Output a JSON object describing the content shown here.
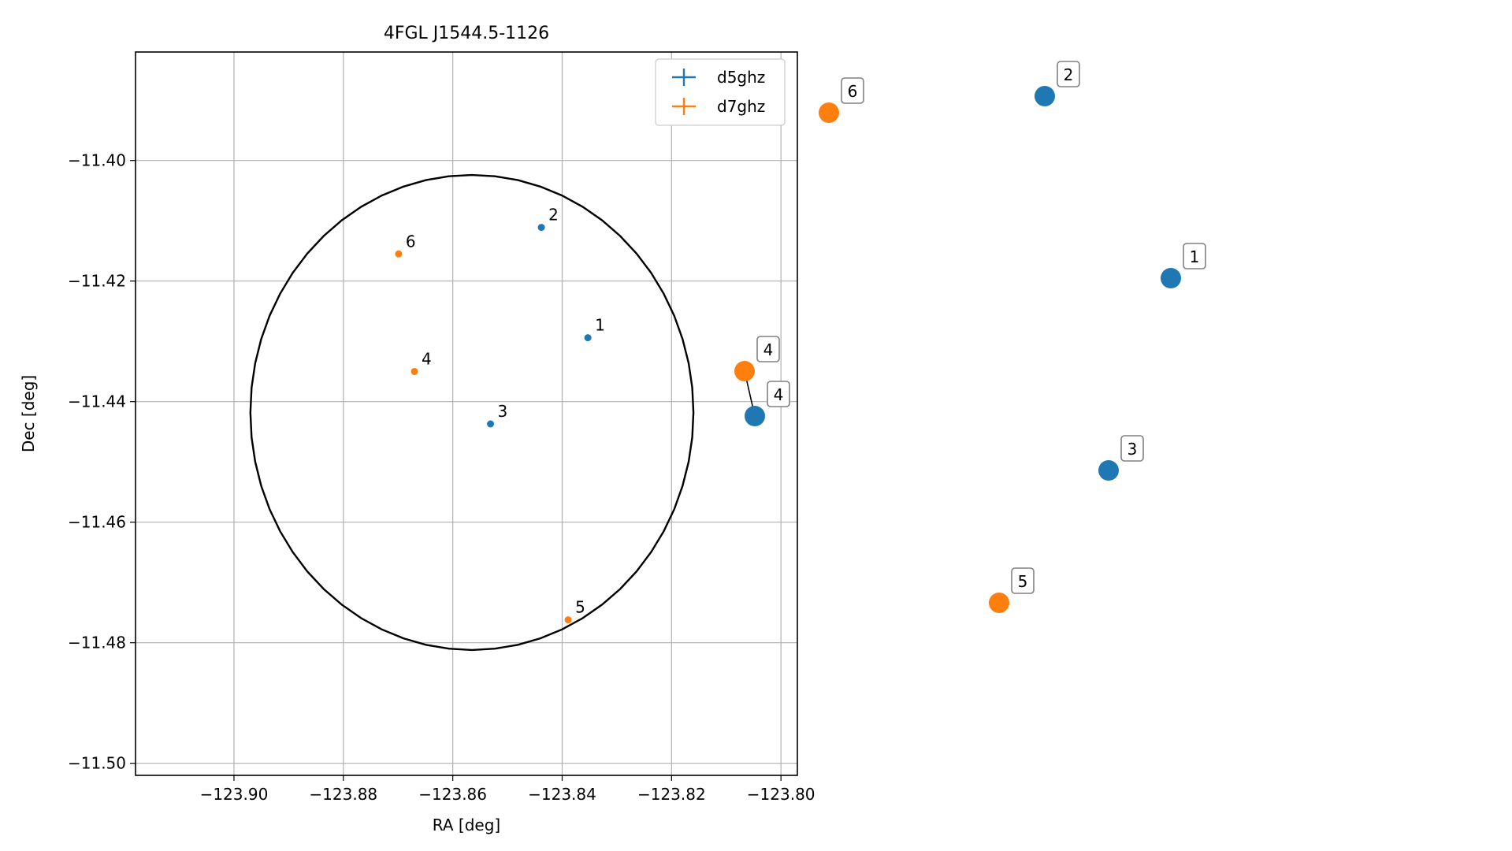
{
  "chart_data": [
    {
      "type": "scatter",
      "title": "4FGL J1544.5-1126",
      "xlabel": "RA [deg]",
      "ylabel": "Dec [deg]",
      "xlim": [
        -123.918,
        -123.797
      ],
      "ylim": [
        -11.502,
        -11.382
      ],
      "xticks": [
        -123.9,
        -123.88,
        -123.86,
        -123.84,
        -123.82,
        -123.8
      ],
      "xtick_labels": [
        "−123.90",
        "−123.88",
        "−123.86",
        "−123.84",
        "−123.82",
        "−123.80"
      ],
      "yticks": [
        -11.4,
        -11.42,
        -11.44,
        -11.46,
        -11.48,
        -11.5
      ],
      "ytick_labels": [
        "−11.40",
        "−11.42",
        "−11.44",
        "−11.46",
        "−11.48",
        "−11.50"
      ],
      "grid": true,
      "legend_position": "top-right",
      "ellipse": {
        "center": [
          -123.8565,
          -11.4418
        ],
        "ra_radius": 0.0405,
        "dec_radius": 0.0394,
        "color": "#000000"
      },
      "series": [
        {
          "name": "d5ghz",
          "color": "#1f77b4",
          "points": [
            {
              "label": "1",
              "x": -123.8353,
              "y": -11.4294
            },
            {
              "label": "2",
              "x": -123.8438,
              "y": -11.4111
            },
            {
              "label": "3",
              "x": -123.8531,
              "y": -11.4437
            }
          ]
        },
        {
          "name": "d7ghz",
          "color": "#ff7f0e",
          "points": [
            {
              "label": "4",
              "x": -123.867,
              "y": -11.435
            },
            {
              "label": "5",
              "x": -123.8389,
              "y": -11.4762
            },
            {
              "label": "6",
              "x": -123.8699,
              "y": -11.4155
            }
          ]
        }
      ]
    },
    {
      "type": "scatter",
      "title": "",
      "axes": false,
      "labels_boxed": true,
      "links": [
        [
          "4",
          "4"
        ]
      ],
      "series": [
        {
          "name": "d5ghz",
          "color": "#1f77b4",
          "points": [
            {
              "label": "1",
              "x": 1486,
              "y": 353
            },
            {
              "label": "2",
              "x": 1326,
              "y": 122
            },
            {
              "label": "3",
              "x": 1407,
              "y": 597
            },
            {
              "label": "4",
              "x": 958,
              "y": 528
            }
          ]
        },
        {
          "name": "d7ghz",
          "color": "#ff7f0e",
          "points": [
            {
              "label": "4",
              "x": 945,
              "y": 471
            },
            {
              "label": "5",
              "x": 1268,
              "y": 765
            },
            {
              "label": "6",
              "x": 1052,
              "y": 143
            }
          ]
        }
      ]
    }
  ]
}
